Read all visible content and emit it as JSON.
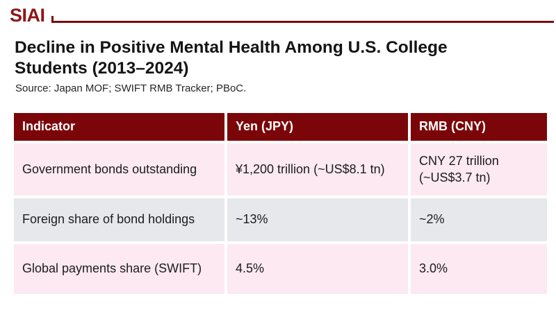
{
  "brand": {
    "logo": "SIAI"
  },
  "document": {
    "title": "Decline in Positive Mental Health Among U.S. College Students (2013–2024)",
    "source": "Source: Japan MOF; SWIFT RMB Tracker; PBoC."
  },
  "table": {
    "columns": [
      {
        "label": "Indicator"
      },
      {
        "label": "Yen (JPY)"
      },
      {
        "label": "RMB (CNY)"
      }
    ],
    "rows": [
      {
        "indicator": "Government bonds outstanding",
        "jpy": "¥1,200 trillion (~US$8.1 tn)",
        "cny": "CNY 27 trillion (~US$3.7 tn)"
      },
      {
        "indicator": "Foreign share of bond holdings",
        "jpy": "~13%",
        "cny": "~2%"
      },
      {
        "indicator": "Global payments share (SWIFT)",
        "jpy": "4.5%",
        "cny": "3.0%"
      }
    ]
  },
  "colors": {
    "maroon_header": "#7b0609",
    "brand_red": "#8e1616",
    "rule_red": "#7a0a0a",
    "row_pink": "#fce9f1",
    "row_gray": "#e7e8ec"
  }
}
